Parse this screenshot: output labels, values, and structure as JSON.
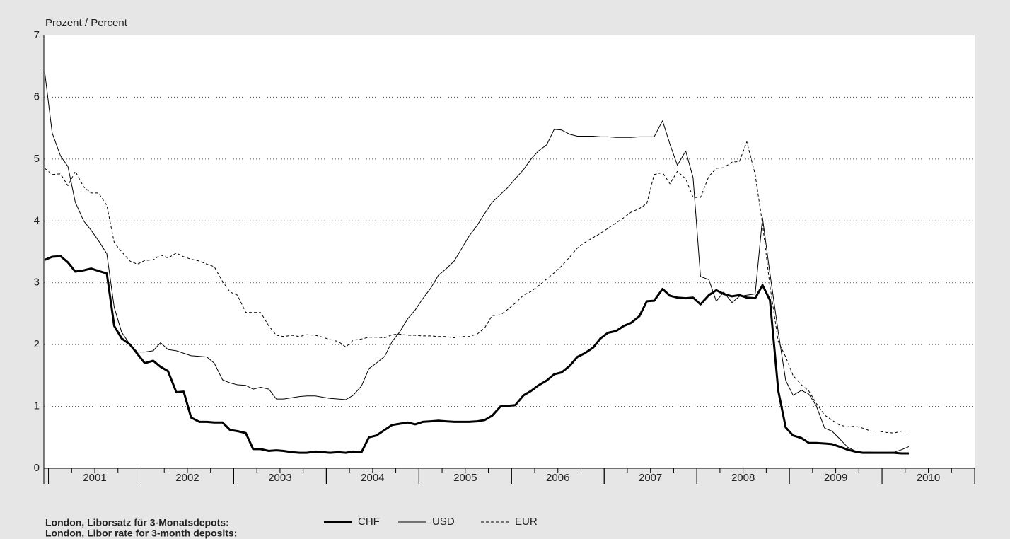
{
  "chart_data": {
    "type": "line",
    "y_label": "Prozent / Percent",
    "legend_title": [
      "London, Liborsatz für 3-Monatsdepots:",
      "London, Libor rate for 3-month deposits:"
    ],
    "xlim": [
      2000.95,
      2011
    ],
    "xticks": [
      {
        "value": 2001.5,
        "label": "2001"
      },
      {
        "value": 2002.5,
        "label": "2002"
      },
      {
        "value": 2003.5,
        "label": "2003"
      },
      {
        "value": 2004.5,
        "label": "2004"
      },
      {
        "value": 2005.5,
        "label": "2005"
      },
      {
        "value": 2006.5,
        "label": "2006"
      },
      {
        "value": 2007.5,
        "label": "2007"
      },
      {
        "value": 2008.5,
        "label": "2008"
      },
      {
        "value": 2009.5,
        "label": "2009"
      },
      {
        "value": 2010.5,
        "label": "2010"
      }
    ],
    "ylim": [
      0,
      7
    ],
    "yticks": [
      0,
      1,
      2,
      3,
      4,
      5,
      6,
      7
    ],
    "grid": true,
    "x": [
      2000.96,
      2001.04,
      2001.13,
      2001.21,
      2001.29,
      2001.38,
      2001.46,
      2001.54,
      2001.63,
      2001.71,
      2001.79,
      2001.88,
      2001.96,
      2002.04,
      2002.13,
      2002.21,
      2002.29,
      2002.38,
      2002.46,
      2002.54,
      2002.63,
      2002.71,
      2002.79,
      2002.88,
      2002.96,
      2003.04,
      2003.13,
      2003.21,
      2003.29,
      2003.38,
      2003.46,
      2003.54,
      2003.63,
      2003.71,
      2003.79,
      2003.88,
      2003.96,
      2004.04,
      2004.13,
      2004.21,
      2004.29,
      2004.38,
      2004.46,
      2004.54,
      2004.63,
      2004.71,
      2004.79,
      2004.88,
      2004.96,
      2005.04,
      2005.13,
      2005.21,
      2005.29,
      2005.38,
      2005.46,
      2005.54,
      2005.63,
      2005.71,
      2005.79,
      2005.88,
      2005.96,
      2006.04,
      2006.13,
      2006.21,
      2006.29,
      2006.38,
      2006.46,
      2006.54,
      2006.63,
      2006.71,
      2006.79,
      2006.88,
      2006.96,
      2007.04,
      2007.13,
      2007.21,
      2007.29,
      2007.38,
      2007.46,
      2007.54,
      2007.63,
      2007.71,
      2007.79,
      2007.88,
      2007.96,
      2008.04,
      2008.13,
      2008.21,
      2008.29,
      2008.38,
      2008.46,
      2008.54,
      2008.63,
      2008.71,
      2008.79,
      2008.88,
      2008.96,
      2009.04,
      2009.13,
      2009.21,
      2009.29,
      2009.38,
      2009.46,
      2009.54,
      2009.63,
      2009.71,
      2009.79,
      2009.88,
      2009.96,
      2010.04,
      2010.13,
      2010.21,
      2010.29
    ],
    "series": [
      {
        "name": "CHF",
        "color": "#000000",
        "style": "bold",
        "values": [
          3.37,
          3.42,
          3.43,
          3.33,
          3.18,
          3.2,
          3.23,
          3.19,
          3.15,
          2.3,
          2.1,
          2.0,
          1.85,
          1.7,
          1.74,
          1.64,
          1.57,
          1.23,
          1.24,
          0.82,
          0.75,
          0.75,
          0.74,
          0.74,
          0.62,
          0.6,
          0.57,
          0.31,
          0.31,
          0.28,
          0.29,
          0.28,
          0.26,
          0.25,
          0.25,
          0.27,
          0.26,
          0.25,
          0.26,
          0.25,
          0.27,
          0.26,
          0.5,
          0.53,
          0.62,
          0.7,
          0.72,
          0.74,
          0.71,
          0.75,
          0.76,
          0.77,
          0.76,
          0.75,
          0.75,
          0.75,
          0.76,
          0.78,
          0.85,
          1.0,
          1.01,
          1.02,
          1.18,
          1.25,
          1.34,
          1.42,
          1.52,
          1.55,
          1.66,
          1.8,
          1.86,
          1.95,
          2.1,
          2.19,
          2.22,
          2.3,
          2.35,
          2.46,
          2.7,
          2.71,
          2.9,
          2.79,
          2.76,
          2.75,
          2.76,
          2.65,
          2.8,
          2.88,
          2.82,
          2.78,
          2.8,
          2.76,
          2.75,
          2.96,
          2.72,
          1.25,
          0.66,
          0.53,
          0.49,
          0.41,
          0.41,
          0.4,
          0.39,
          0.35,
          0.3,
          0.27,
          0.25,
          0.25,
          0.25,
          0.25,
          0.25,
          0.24,
          0.24
        ]
      },
      {
        "name": "USD",
        "color": "#000000",
        "style": "solid",
        "values": [
          6.4,
          5.42,
          5.05,
          4.88,
          4.3,
          4.0,
          3.85,
          3.68,
          3.47,
          2.6,
          2.2,
          2.0,
          1.88,
          1.88,
          1.9,
          2.03,
          1.92,
          1.9,
          1.86,
          1.82,
          1.81,
          1.8,
          1.7,
          1.43,
          1.38,
          1.35,
          1.34,
          1.28,
          1.31,
          1.28,
          1.12,
          1.12,
          1.14,
          1.16,
          1.17,
          1.17,
          1.15,
          1.13,
          1.12,
          1.11,
          1.18,
          1.33,
          1.61,
          1.7,
          1.81,
          2.05,
          2.2,
          2.42,
          2.56,
          2.74,
          2.92,
          3.12,
          3.22,
          3.35,
          3.55,
          3.75,
          3.93,
          4.12,
          4.3,
          4.43,
          4.54,
          4.68,
          4.83,
          5.0,
          5.13,
          5.23,
          5.48,
          5.47,
          5.4,
          5.37,
          5.37,
          5.37,
          5.36,
          5.36,
          5.35,
          5.35,
          5.35,
          5.36,
          5.36,
          5.36,
          5.62,
          5.24,
          4.9,
          5.13,
          4.7,
          3.1,
          3.05,
          2.7,
          2.85,
          2.68,
          2.78,
          2.8,
          2.82,
          4.05,
          3.15,
          2.2,
          1.42,
          1.18,
          1.26,
          1.2,
          1.01,
          0.65,
          0.6,
          0.48,
          0.34,
          0.28,
          0.26,
          0.26,
          0.25,
          0.25,
          0.26,
          0.3,
          0.35
        ]
      },
      {
        "name": "EUR",
        "color": "#000000",
        "style": "dashed",
        "values": [
          4.85,
          4.75,
          4.76,
          4.57,
          4.8,
          4.55,
          4.45,
          4.45,
          4.25,
          3.65,
          3.5,
          3.35,
          3.3,
          3.36,
          3.37,
          3.45,
          3.4,
          3.48,
          3.42,
          3.38,
          3.35,
          3.3,
          3.26,
          3.02,
          2.85,
          2.8,
          2.52,
          2.52,
          2.52,
          2.3,
          2.15,
          2.13,
          2.15,
          2.13,
          2.16,
          2.15,
          2.12,
          2.08,
          2.05,
          1.96,
          2.07,
          2.09,
          2.12,
          2.12,
          2.11,
          2.16,
          2.17,
          2.15,
          2.15,
          2.14,
          2.14,
          2.13,
          2.13,
          2.11,
          2.13,
          2.13,
          2.17,
          2.27,
          2.47,
          2.48,
          2.57,
          2.67,
          2.8,
          2.86,
          2.95,
          3.06,
          3.16,
          3.27,
          3.42,
          3.56,
          3.65,
          3.73,
          3.8,
          3.88,
          3.97,
          4.05,
          4.14,
          4.2,
          4.28,
          4.75,
          4.78,
          4.6,
          4.8,
          4.68,
          4.38,
          4.38,
          4.72,
          4.85,
          4.86,
          4.95,
          4.96,
          5.28,
          4.75,
          3.95,
          2.95,
          2.05,
          1.8,
          1.5,
          1.35,
          1.25,
          1.05,
          0.86,
          0.78,
          0.7,
          0.67,
          0.68,
          0.65,
          0.6,
          0.6,
          0.58,
          0.57,
          0.6,
          0.6
        ]
      }
    ]
  }
}
